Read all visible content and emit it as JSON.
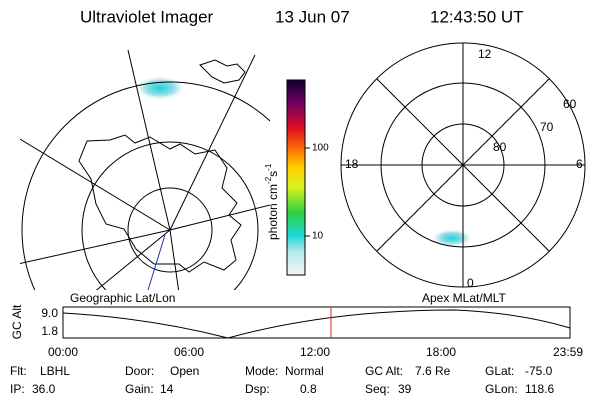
{
  "header": {
    "title": "Ultraviolet Imager",
    "date": "13 Jun 07",
    "time": "12:43:50 UT"
  },
  "panels": {
    "left_label": "Geographic Lat/Lon",
    "right_label": "Apex MLat/MLT"
  },
  "polar": {
    "mlt": {
      "top": "12",
      "right": "6",
      "left": "18",
      "bottom": "0"
    },
    "mlat": [
      "60",
      "70",
      "80"
    ]
  },
  "colorbar": {
    "label": "photon cm",
    "exp1": "-2",
    "unit2": "s",
    "exp2": "-1",
    "ticks": [
      "100",
      "10"
    ]
  },
  "altitude_plot": {
    "ylabel": "GC Alt",
    "yticks": [
      "9.0",
      "1.8"
    ],
    "xticks": [
      "00:00",
      "06:00",
      "12:00",
      "18:00",
      "23:59"
    ]
  },
  "footer": [
    {
      "label": "Flt:",
      "value": "LBHL"
    },
    {
      "label": "Door:",
      "value": "Open"
    },
    {
      "label": "Mode:",
      "value": "Normal"
    },
    {
      "label": "GC Alt:",
      "value": "7.6 Re"
    },
    {
      "label": "GLat:",
      "value": "-75.0"
    },
    {
      "label": "IP:",
      "value": "36.0"
    },
    {
      "label": "Gain:",
      "value": "14"
    },
    {
      "label": "Dsp:",
      "value": "0.8"
    },
    {
      "label": "Seq:",
      "value": "39"
    },
    {
      "label": "GLon:",
      "value": "118.6"
    }
  ]
}
